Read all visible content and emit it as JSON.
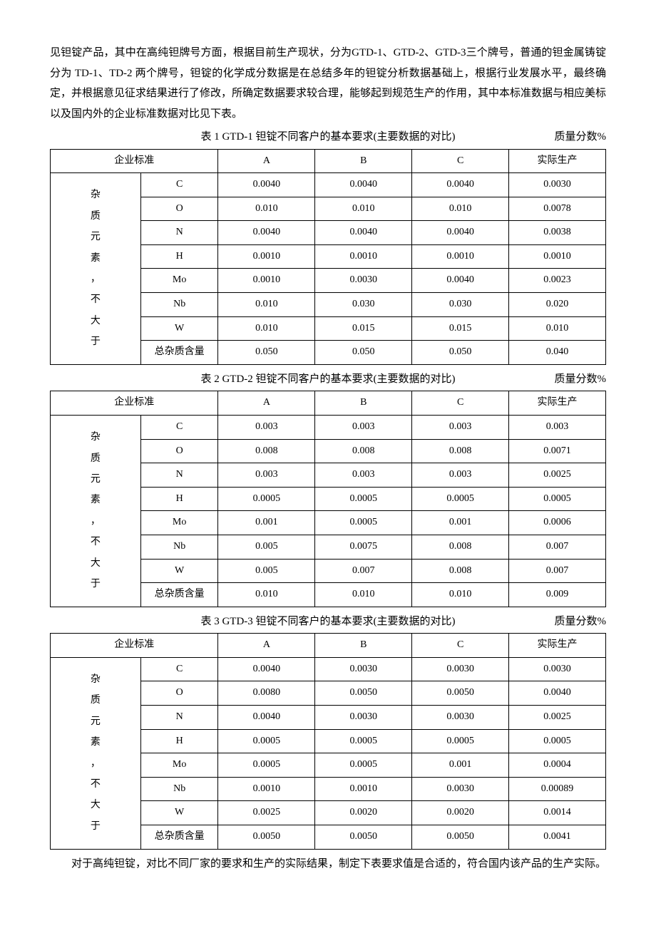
{
  "para1": "见钽锭产品，其中在高纯钽牌号方面，根据目前生产现状，分为GTD-1、GTD-2、GTD-3三个牌号，普通的钽金属铸锭分为 TD-1、TD-2 两个牌号，钽锭的化学成分数据是在总结多年的钽锭分析数据基础上，根据行业发展水平，最终确定，并根据意见征求结果进行了修改，所确定数据要求较合理，能够起到规范生产的作用，其中本标准数据与相应美标以及国内外的企业标准数据对比见下表。",
  "para2": "对于高纯钽锭，对比不同厂家的要求和生产的实际结果，制定下表要求值是合适的，符合国内该产品的生产实际。",
  "tables": [
    {
      "title": "表 1 GTD-1 钽锭不同客户的基本要求(主要数据的对比)",
      "unit": "质量分数%",
      "header": {
        "std": "企业标准",
        "a": "A",
        "b": "B",
        "c": "C",
        "actual": "实际生产"
      },
      "rowLabel": "杂质元素，不大于",
      "rows": [
        {
          "e": "C",
          "a": "0.0040",
          "b": "0.0040",
          "c": "0.0040",
          "d": "0.0030"
        },
        {
          "e": "O",
          "a": "0.010",
          "b": "0.010",
          "c": "0.010",
          "d": "0.0078"
        },
        {
          "e": "N",
          "a": "0.0040",
          "b": "0.0040",
          "c": "0.0040",
          "d": "0.0038"
        },
        {
          "e": "H",
          "a": "0.0010",
          "b": "0.0010",
          "c": "0.0010",
          "d": "0.0010"
        },
        {
          "e": "Mo",
          "a": "0.0010",
          "b": "0.0030",
          "c": "0.0040",
          "d": "0.0023"
        },
        {
          "e": "Nb",
          "a": "0.010",
          "b": "0.030",
          "c": "0.030",
          "d": "0.020"
        },
        {
          "e": "W",
          "a": "0.010",
          "b": "0.015",
          "c": "0.015",
          "d": "0.010"
        },
        {
          "e": "总杂质含量",
          "a": "0.050",
          "b": "0.050",
          "c": "0.050",
          "d": "0.040"
        }
      ]
    },
    {
      "title": "表 2 GTD-2 钽锭不同客户的基本要求(主要数据的对比)",
      "unit": "质量分数%",
      "header": {
        "std": "企业标准",
        "a": "A",
        "b": "B",
        "c": "C",
        "actual": "实际生产"
      },
      "rowLabel": "杂质元素，不大于",
      "rows": [
        {
          "e": "C",
          "a": "0.003",
          "b": "0.003",
          "c": "0.003",
          "d": "0.003"
        },
        {
          "e": "O",
          "a": "0.008",
          "b": "0.008",
          "c": "0.008",
          "d": "0.0071"
        },
        {
          "e": "N",
          "a": "0.003",
          "b": "0.003",
          "c": "0.003",
          "d": "0.0025"
        },
        {
          "e": "H",
          "a": "0.0005",
          "b": "0.0005",
          "c": "0.0005",
          "d": "0.0005"
        },
        {
          "e": "Mo",
          "a": "0.001",
          "b": "0.0005",
          "c": "0.001",
          "d": "0.0006"
        },
        {
          "e": "Nb",
          "a": "0.005",
          "b": "0.0075",
          "c": "0.008",
          "d": "0.007"
        },
        {
          "e": "W",
          "a": "0.005",
          "b": "0.007",
          "c": "0.008",
          "d": "0.007"
        },
        {
          "e": "总杂质含量",
          "a": "0.010",
          "b": "0.010",
          "c": "0.010",
          "d": "0.009"
        }
      ]
    },
    {
      "title": "表 3 GTD-3 钽锭不同客户的基本要求(主要数据的对比)",
      "unit": "质量分数%",
      "header": {
        "std": "企业标准",
        "a": "A",
        "b": "B",
        "c": "C",
        "actual": "实际生产"
      },
      "rowLabel": "杂质元素，不大于",
      "rows": [
        {
          "e": "C",
          "a": "0.0040",
          "b": "0.0030",
          "c": "0.0030",
          "d": "0.0030"
        },
        {
          "e": "O",
          "a": "0.0080",
          "b": "0.0050",
          "c": "0.0050",
          "d": "0.0040"
        },
        {
          "e": "N",
          "a": "0.0040",
          "b": "0.0030",
          "c": "0.0030",
          "d": "0.0025"
        },
        {
          "e": "H",
          "a": "0.0005",
          "b": "0.0005",
          "c": "0.0005",
          "d": "0.0005"
        },
        {
          "e": "Mo",
          "a": "0.0005",
          "b": "0.0005",
          "c": "0.001",
          "d": "0.0004"
        },
        {
          "e": "Nb",
          "a": "0.0010",
          "b": "0.0010",
          "c": "0.0030",
          "d": "0.00089"
        },
        {
          "e": "W",
          "a": "0.0025",
          "b": "0.0020",
          "c": "0.0020",
          "d": "0.0014"
        },
        {
          "e": "总杂质含量",
          "a": "0.0050",
          "b": "0.0050",
          "c": "0.0050",
          "d": "0.0041"
        }
      ]
    }
  ]
}
